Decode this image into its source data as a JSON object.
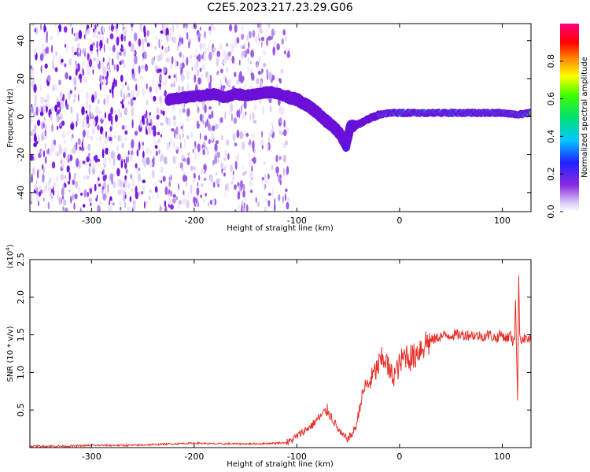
{
  "figure": {
    "title": "C2E5.2023.217.23.29.G06"
  },
  "chart_data": [
    {
      "type": "heatmap",
      "name": "spectrogram",
      "xlabel": "Height of straight line (km)",
      "ylabel": "Frequency (Hz)",
      "xlim": [
        -360,
        128
      ],
      "ylim": [
        -50,
        49
      ],
      "xticks": [
        -300,
        -200,
        -100,
        0,
        100
      ],
      "yticks": [
        -40,
        -20,
        0,
        20,
        40
      ],
      "colorbar": {
        "label": "Normalized spectral amplitude",
        "range": [
          0,
          1
        ],
        "ticks": [
          "0.0",
          "0.2",
          "0.4",
          "0.6",
          "0.8"
        ],
        "colormap": "white-purple-blue-cyan-green-yellow-red-magenta"
      },
      "features": [
        {
          "label": "noise",
          "x_range": [
            -360,
            -108
          ],
          "freq_range": [
            -50,
            49
          ]
        },
        {
          "label": "signal",
          "path": [
            [
              -225,
              9
            ],
            [
              -210,
              10
            ],
            [
              -195,
              11
            ],
            [
              -180,
              12
            ],
            [
              -170,
              10
            ],
            [
              -160,
              12
            ],
            [
              -150,
              11
            ],
            [
              -140,
              12
            ],
            [
              -125,
              13
            ],
            [
              -112,
              11
            ],
            [
              -100,
              9
            ],
            [
              -90,
              6
            ],
            [
              -80,
              2
            ],
            [
              -72,
              -2
            ],
            [
              -65,
              -5
            ],
            [
              -58,
              -9
            ],
            [
              -52,
              -15
            ],
            [
              -48,
              -5
            ],
            [
              -40,
              -4
            ],
            [
              -30,
              -1
            ],
            [
              -20,
              1
            ],
            [
              -10,
              2
            ],
            [
              0,
              2
            ],
            [
              20,
              2
            ],
            [
              50,
              2
            ],
            [
              80,
              2
            ],
            [
              100,
              2
            ],
            [
              115,
              1
            ],
            [
              128,
              2
            ]
          ]
        }
      ]
    },
    {
      "type": "line",
      "name": "snr",
      "xlabel": "Height of straight line (km)",
      "ylabel": "SNR (10 * v/v)",
      "yscale_label": "(x10",
      "yscale_exp": "4",
      "yscale_close": ")",
      "xlim": [
        -360,
        128
      ],
      "ylim": [
        0,
        2.5
      ],
      "xticks": [
        -300,
        -200,
        -100,
        0,
        100
      ],
      "yticks": [
        "0.5",
        "1.0",
        "1.5",
        "2.0",
        "2.5"
      ],
      "color": "#e8302a",
      "series": [
        {
          "x": [
            -360,
            -340,
            -320,
            -300,
            -280,
            -260,
            -240,
            -220,
            -200,
            -180,
            -160,
            -140,
            -120,
            -108,
            -100,
            -95,
            -90,
            -85,
            -82,
            -78,
            -74,
            -70,
            -66,
            -62,
            -58,
            -55,
            -50,
            -46,
            -42,
            -38,
            -34,
            -30,
            -26,
            -22,
            -18,
            -14,
            -10,
            -6,
            -2,
            2,
            6,
            10,
            14,
            18,
            22,
            26,
            30,
            35,
            40,
            50,
            60,
            70,
            80,
            88,
            94,
            98,
            100,
            104,
            108,
            110,
            112,
            113,
            114,
            115,
            116,
            117,
            118,
            120,
            124,
            128
          ],
          "y": [
            0.02,
            0.02,
            0.02,
            0.03,
            0.03,
            0.03,
            0.04,
            0.05,
            0.06,
            0.05,
            0.05,
            0.05,
            0.06,
            0.07,
            0.15,
            0.2,
            0.25,
            0.3,
            0.35,
            0.4,
            0.45,
            0.5,
            0.4,
            0.3,
            0.2,
            0.15,
            0.12,
            0.18,
            0.3,
            0.6,
            0.8,
            0.85,
            0.95,
            1.05,
            1.15,
            1.2,
            1.0,
            0.95,
            1.05,
            1.15,
            1.25,
            1.2,
            1.2,
            1.3,
            1.35,
            1.4,
            1.42,
            1.45,
            1.48,
            1.5,
            1.5,
            1.5,
            1.48,
            1.5,
            1.45,
            1.5,
            1.5,
            1.45,
            1.5,
            1.4,
            1.5,
            2.0,
            1.2,
            0.6,
            2.4,
            1.5,
            1.45,
            1.45,
            1.45,
            1.43
          ]
        }
      ]
    }
  ]
}
